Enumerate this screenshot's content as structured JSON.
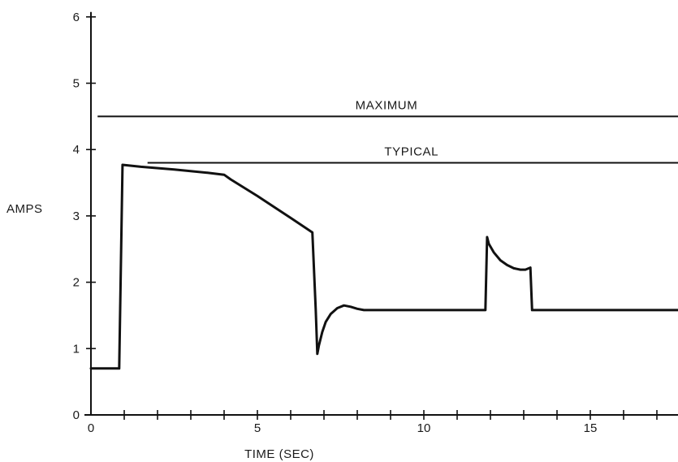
{
  "chart_data": {
    "type": "line",
    "xlabel": "TIME (SEC)",
    "ylabel": "AMPS",
    "xlim": [
      0,
      17.8
    ],
    "ylim": [
      0,
      6
    ],
    "x_ticks": [
      0,
      5,
      10,
      15
    ],
    "y_ticks": [
      0,
      1,
      2,
      3,
      4,
      5,
      6
    ],
    "x_minor_step": 1,
    "grid": false,
    "legend": "none",
    "colors": {
      "line": "#111111",
      "axis": "#111111"
    },
    "reference_lines": [
      {
        "label": "MAXIMUM",
        "y": 4.5,
        "x_start": 0.2,
        "x_end": 17.8
      },
      {
        "label": "TYPICAL",
        "y": 3.8,
        "x_start": 1.7,
        "x_end": 17.8
      }
    ],
    "series": [
      {
        "x": [
          0.0,
          0.85,
          0.95,
          1.5,
          2.5,
          3.5,
          4.0,
          4.2,
          5.0,
          6.0,
          6.65,
          6.75,
          6.8,
          6.85,
          6.95,
          7.05,
          7.2,
          7.4,
          7.6,
          7.8,
          8.0,
          8.2,
          9.0,
          10.0,
          11.0,
          11.85,
          11.9,
          11.95,
          12.1,
          12.3,
          12.5,
          12.7,
          12.9,
          13.05,
          13.2,
          13.25,
          13.3,
          14.0,
          15.0,
          16.0,
          17.0,
          17.8
        ],
        "y": [
          0.7,
          0.7,
          3.77,
          3.74,
          3.7,
          3.65,
          3.62,
          3.55,
          3.3,
          2.97,
          2.75,
          1.6,
          0.92,
          1.05,
          1.25,
          1.4,
          1.52,
          1.61,
          1.65,
          1.63,
          1.6,
          1.58,
          1.58,
          1.58,
          1.58,
          1.58,
          2.68,
          2.58,
          2.45,
          2.33,
          2.26,
          2.21,
          2.19,
          2.19,
          2.22,
          1.58,
          1.58,
          1.58,
          1.58,
          1.58,
          1.58,
          1.58
        ]
      }
    ]
  }
}
